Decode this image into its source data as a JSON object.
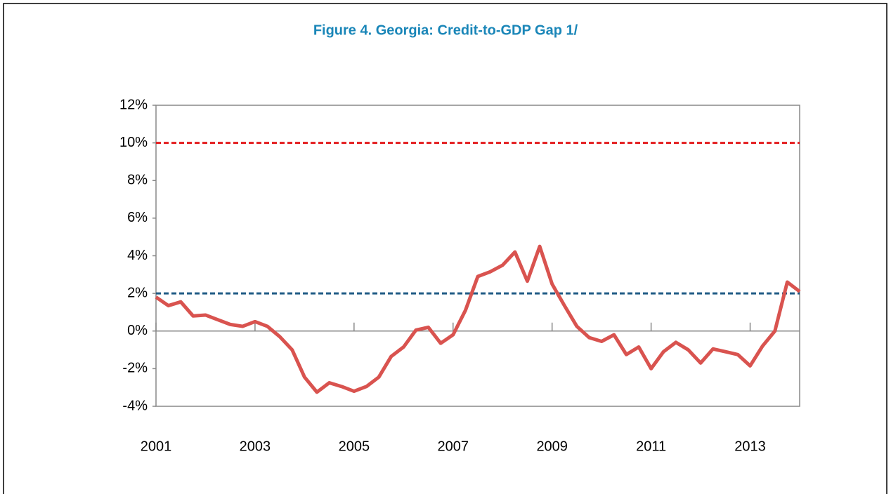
{
  "chart_data": {
    "type": "line",
    "title": "Figure 4. Georgia: Credit-to-GDP Gap 1/",
    "x": [
      2001,
      2001.25,
      2001.5,
      2001.75,
      2002,
      2002.25,
      2002.5,
      2002.75,
      2003,
      2003.25,
      2003.5,
      2003.75,
      2004,
      2004.25,
      2004.5,
      2004.75,
      2005,
      2005.25,
      2005.5,
      2005.75,
      2006,
      2006.25,
      2006.5,
      2006.75,
      2007,
      2007.25,
      2007.5,
      2007.75,
      2008,
      2008.25,
      2008.5,
      2008.75,
      2009,
      2009.25,
      2009.5,
      2009.75,
      2010,
      2010.25,
      2010.5,
      2010.75,
      2011,
      2011.25,
      2011.5,
      2011.75,
      2012,
      2012.25,
      2012.5,
      2012.75,
      2013,
      2013.25,
      2013.5,
      2013.75,
      2014
    ],
    "series": [
      {
        "color": "#d9534f",
        "values": [
          1.8,
          1.35,
          1.55,
          0.8,
          0.85,
          0.6,
          0.35,
          0.25,
          0.5,
          0.25,
          -0.3,
          -1.0,
          -2.45,
          -3.25,
          -2.75,
          -2.95,
          -3.2,
          -2.95,
          -2.45,
          -1.35,
          -0.85,
          0.05,
          0.2,
          -0.65,
          -0.2,
          1.1,
          2.9,
          3.15,
          3.5,
          4.2,
          2.65,
          4.5,
          2.5,
          1.35,
          0.25,
          -0.35,
          -0.55,
          -0.2,
          -1.25,
          -0.85,
          -2.0,
          -1.1,
          -0.6,
          -1.0,
          -1.7,
          -0.95,
          -1.1,
          -1.25,
          -1.85,
          -0.8,
          0.0,
          2.6,
          2.1
        ]
      }
    ],
    "reference_lines": [
      {
        "value": 10,
        "color": "#e31a1c"
      },
      {
        "value": 2,
        "color": "#1f5a85"
      }
    ],
    "xlim": [
      2001,
      2014
    ],
    "xticks": [
      2001,
      2003,
      2005,
      2007,
      2009,
      2011,
      2013
    ],
    "ylim": [
      -4,
      12
    ],
    "yticks": [
      {
        "value": -4,
        "label": "-4%"
      },
      {
        "value": -2,
        "label": "-2%"
      },
      {
        "value": 0,
        "label": "0%"
      },
      {
        "value": 2,
        "label": "2%"
      },
      {
        "value": 4,
        "label": "4%"
      },
      {
        "value": 6,
        "label": "6%"
      },
      {
        "value": 8,
        "label": "8%"
      },
      {
        "value": 10,
        "label": "10%"
      },
      {
        "value": 12,
        "label": "12%"
      }
    ]
  }
}
